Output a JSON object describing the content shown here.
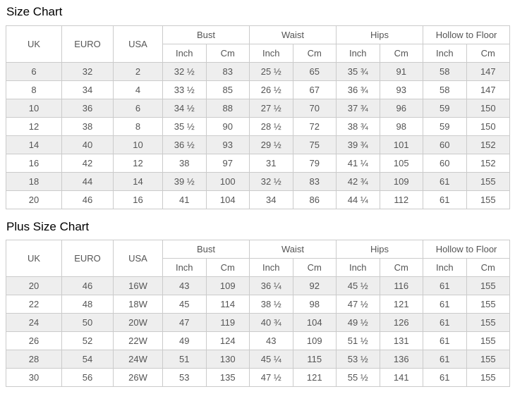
{
  "colors": {
    "border": "#cbcbcb",
    "stripe_row_bg": "#eeeeee",
    "table_text": "#555555",
    "title_text": "#000000"
  },
  "chart_data": [
    {
      "type": "table",
      "title": "Size Chart",
      "header": {
        "spanned": [
          "UK",
          "EURO",
          "USA"
        ],
        "groups": [
          "Bust",
          "Waist",
          "Hips",
          "Hollow to Floor"
        ],
        "sub": [
          "Inch",
          "Cm"
        ]
      },
      "rows": [
        [
          "6",
          "32",
          "2",
          "32 ½",
          "83",
          "25 ½",
          "65",
          "35 ¾",
          "91",
          "58",
          "147"
        ],
        [
          "8",
          "34",
          "4",
          "33 ½",
          "85",
          "26 ½",
          "67",
          "36 ¾",
          "93",
          "58",
          "147"
        ],
        [
          "10",
          "36",
          "6",
          "34 ½",
          "88",
          "27 ½",
          "70",
          "37 ¾",
          "96",
          "59",
          "150"
        ],
        [
          "12",
          "38",
          "8",
          "35 ½",
          "90",
          "28 ½",
          "72",
          "38 ¾",
          "98",
          "59",
          "150"
        ],
        [
          "14",
          "40",
          "10",
          "36 ½",
          "93",
          "29 ½",
          "75",
          "39 ¾",
          "101",
          "60",
          "152"
        ],
        [
          "16",
          "42",
          "12",
          "38",
          "97",
          "31",
          "79",
          "41 ¼",
          "105",
          "60",
          "152"
        ],
        [
          "18",
          "44",
          "14",
          "39 ½",
          "100",
          "32 ½",
          "83",
          "42 ¾",
          "109",
          "61",
          "155"
        ],
        [
          "20",
          "46",
          "16",
          "41",
          "104",
          "34",
          "86",
          "44 ¼",
          "112",
          "61",
          "155"
        ]
      ]
    },
    {
      "type": "table",
      "title": "Plus Size Chart",
      "header": {
        "spanned": [
          "UK",
          "EURO",
          "USA"
        ],
        "groups": [
          "Bust",
          "Waist",
          "Hips",
          "Hollow to Floor"
        ],
        "sub": [
          "Inch",
          "Cm"
        ]
      },
      "rows": [
        [
          "20",
          "46",
          "16W",
          "43",
          "109",
          "36 ¼",
          "92",
          "45 ½",
          "116",
          "61",
          "155"
        ],
        [
          "22",
          "48",
          "18W",
          "45",
          "114",
          "38 ½",
          "98",
          "47 ½",
          "121",
          "61",
          "155"
        ],
        [
          "24",
          "50",
          "20W",
          "47",
          "119",
          "40 ¾",
          "104",
          "49 ½",
          "126",
          "61",
          "155"
        ],
        [
          "26",
          "52",
          "22W",
          "49",
          "124",
          "43",
          "109",
          "51 ½",
          "131",
          "61",
          "155"
        ],
        [
          "28",
          "54",
          "24W",
          "51",
          "130",
          "45 ¼",
          "115",
          "53 ½",
          "136",
          "61",
          "155"
        ],
        [
          "30",
          "56",
          "26W",
          "53",
          "135",
          "47 ½",
          "121",
          "55 ½",
          "141",
          "61",
          "155"
        ]
      ]
    }
  ]
}
